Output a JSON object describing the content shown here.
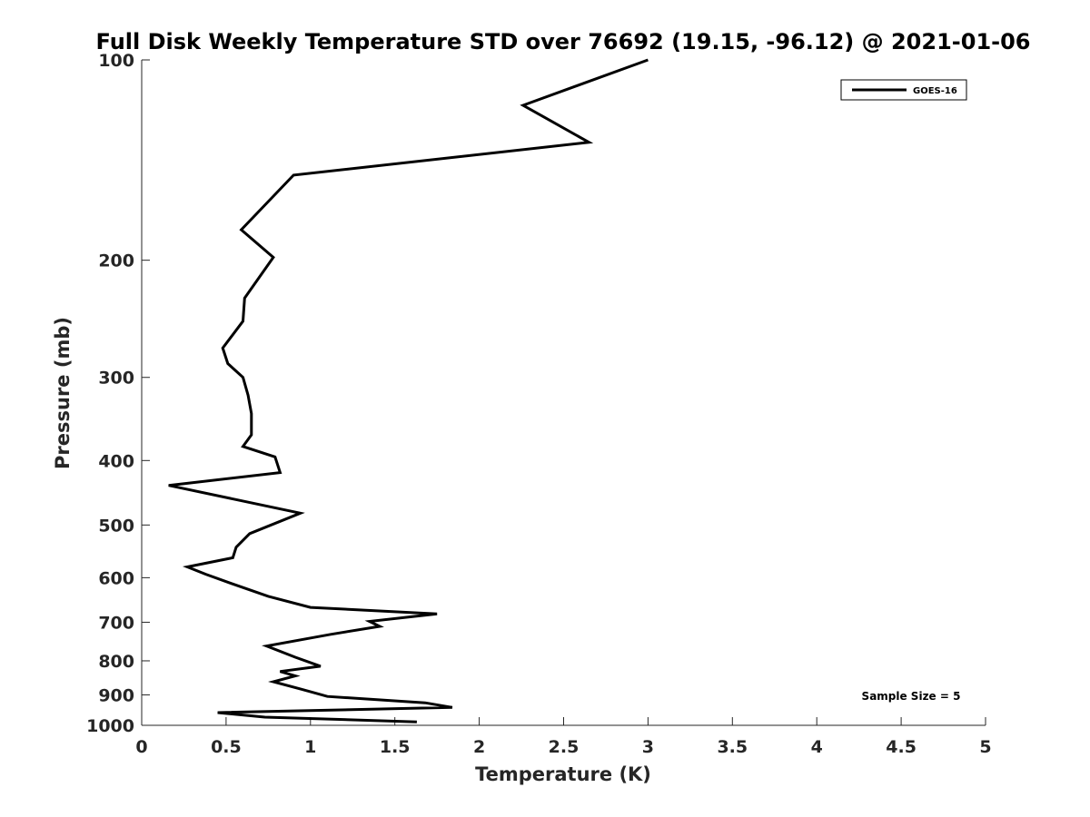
{
  "chart_data": {
    "type": "line",
    "title": "Full Disk Weekly Temperature STD over 76692 (19.15, -96.12) @ 2021-01-06",
    "xlabel": "Temperature (K)",
    "ylabel": "Pressure (mb)",
    "xlim": [
      0,
      5
    ],
    "ylim": [
      1000,
      100
    ],
    "y_scale": "log",
    "y_reversed": true,
    "grid": false,
    "legend_position": "top-right",
    "x_ticks": [
      0,
      0.5,
      1,
      1.5,
      2,
      2.5,
      3,
      3.5,
      4,
      4.5,
      5
    ],
    "x_tick_labels": [
      "0",
      "0.5",
      "1",
      "1.5",
      "2",
      "2.5",
      "3",
      "3.5",
      "4",
      "4.5",
      "5"
    ],
    "y_ticks": [
      100,
      200,
      300,
      400,
      500,
      600,
      700,
      800,
      900,
      1000
    ],
    "y_tick_labels": [
      "100",
      "200",
      "300",
      "400",
      "500",
      "600",
      "700",
      "800",
      "900",
      "1000"
    ],
    "series": [
      {
        "name": "GOES-16",
        "color": "#000000",
        "x": [
          3.0,
          2.26,
          2.65,
          0.9,
          0.59,
          0.78,
          0.61,
          0.6,
          0.48,
          0.51,
          0.6,
          0.63,
          0.65,
          0.65,
          0.6,
          0.79,
          0.82,
          0.16,
          0.94,
          0.64,
          0.56,
          0.54,
          0.27,
          0.38,
          0.53,
          0.75,
          1.0,
          1.75,
          1.35,
          1.41,
          1.12,
          0.74,
          0.91,
          1.06,
          0.82,
          0.91,
          0.78,
          0.95,
          1.1,
          1.68,
          1.84,
          0.45,
          0.73,
          1.63
        ],
        "y": [
          100,
          117,
          133,
          149,
          180,
          198,
          228,
          247,
          271,
          286,
          300,
          319,
          340,
          366,
          381,
          395,
          417,
          436,
          480,
          515,
          540,
          560,
          578,
          593,
          612,
          640,
          665,
          680,
          698,
          710,
          730,
          760,
          790,
          815,
          830,
          843,
          860,
          883,
          905,
          925,
          940,
          957,
          972,
          988
        ]
      }
    ],
    "annotations": [
      "Sample Size = 5"
    ]
  }
}
